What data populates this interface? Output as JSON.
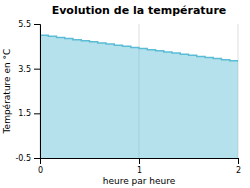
{
  "chart_data": {
    "type": "step",
    "title": "Evolution de la température",
    "xlabel": "heure par heure",
    "ylabel": "Température en °C",
    "x": [
      0,
      0.083,
      0.167,
      0.25,
      0.333,
      0.417,
      0.5,
      0.583,
      0.667,
      0.75,
      0.833,
      0.917,
      1.0,
      1.083,
      1.167,
      1.25,
      1.333,
      1.417,
      1.5,
      1.583,
      1.667,
      1.75,
      1.833,
      1.917,
      2.0
    ],
    "values": [
      5.0,
      4.95,
      4.9,
      4.85,
      4.8,
      4.75,
      4.7,
      4.65,
      4.6,
      4.55,
      4.5,
      4.45,
      4.4,
      4.35,
      4.3,
      4.25,
      4.2,
      4.15,
      4.1,
      4.05,
      4.0,
      3.95,
      3.9,
      3.85,
      3.8
    ],
    "color": "#5bbcd6",
    "xlim": [
      0,
      2
    ],
    "ylim": [
      -0.5,
      5.5
    ],
    "xticks": [
      0,
      1,
      2
    ],
    "yticks": [
      -0.5,
      1.5,
      3.5,
      5.5
    ],
    "grid": true
  }
}
